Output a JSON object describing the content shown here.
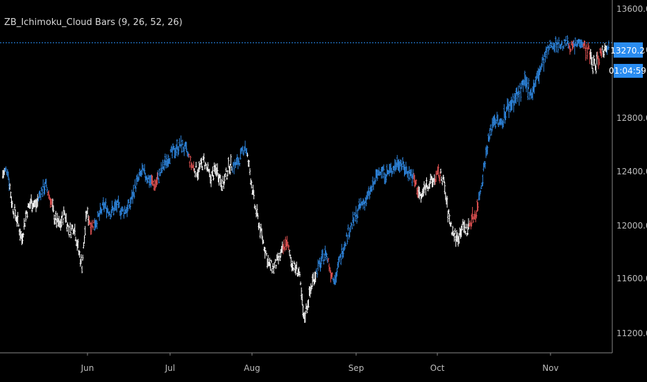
{
  "indicator": {
    "name": "ZB_Ichimoku_Cloud Bars",
    "params": "(9, 26, 52, 26)"
  },
  "price_axis": {
    "ticks": [
      "13600.0",
      "13200.0",
      "12800.0",
      "12400.0",
      "12000.0",
      "11600.0",
      "11200.0"
    ],
    "last_price": "13270.2",
    "countdown": "01:04:59"
  },
  "time_axis": {
    "labels": [
      "Jun",
      "Jul",
      "Aug",
      "Sep",
      "Oct",
      "Nov"
    ]
  },
  "colors": {
    "background": "#000000",
    "bull_above_cloud": "#2f87e0",
    "bear_red": "#e05252",
    "neutral_white": "#ffffff",
    "price_line": "#2a8cf0",
    "axis_line": "#888888"
  },
  "chart_data": {
    "type": "bar",
    "title": "ZB_Ichimoku_Cloud Bars (9, 26, 52, 26)",
    "xlabel": "",
    "ylabel": "",
    "ylim": [
      11080,
      13660
    ],
    "x_labels": [
      "Jun",
      "Jul",
      "Aug",
      "Sep",
      "Oct",
      "Nov"
    ],
    "last_price": 13270.2,
    "anchors": [
      [
        0,
        12380,
        "w"
      ],
      [
        6,
        12420,
        "b"
      ],
      [
        12,
        12150,
        "w"
      ],
      [
        18,
        12050,
        "w"
      ],
      [
        24,
        11900,
        "w"
      ],
      [
        30,
        12100,
        "w"
      ],
      [
        36,
        12180,
        "w"
      ],
      [
        42,
        12150,
        "w"
      ],
      [
        48,
        12250,
        "b"
      ],
      [
        54,
        12300,
        "b"
      ],
      [
        60,
        12200,
        "r"
      ],
      [
        66,
        12050,
        "w"
      ],
      [
        72,
        12000,
        "w"
      ],
      [
        78,
        12100,
        "w"
      ],
      [
        84,
        11950,
        "w"
      ],
      [
        90,
        12000,
        "w"
      ],
      [
        96,
        11800,
        "w"
      ],
      [
        100,
        11700,
        "w"
      ],
      [
        106,
        12100,
        "w"
      ],
      [
        112,
        12000,
        "r"
      ],
      [
        120,
        12050,
        "b"
      ],
      [
        128,
        12150,
        "b"
      ],
      [
        136,
        12100,
        "b"
      ],
      [
        144,
        12150,
        "b"
      ],
      [
        152,
        12100,
        "b"
      ],
      [
        160,
        12150,
        "b"
      ],
      [
        168,
        12300,
        "b"
      ],
      [
        176,
        12400,
        "b"
      ],
      [
        184,
        12350,
        "b"
      ],
      [
        192,
        12300,
        "r"
      ],
      [
        200,
        12400,
        "b"
      ],
      [
        208,
        12500,
        "b"
      ],
      [
        216,
        12550,
        "b"
      ],
      [
        220,
        12580,
        "b"
      ],
      [
        226,
        12600,
        "b"
      ],
      [
        232,
        12550,
        "b"
      ],
      [
        238,
        12450,
        "r"
      ],
      [
        246,
        12400,
        "w"
      ],
      [
        254,
        12480,
        "w"
      ],
      [
        262,
        12350,
        "w"
      ],
      [
        270,
        12420,
        "w"
      ],
      [
        278,
        12300,
        "w"
      ],
      [
        286,
        12450,
        "w"
      ],
      [
        294,
        12450,
        "b"
      ],
      [
        300,
        12500,
        "b"
      ],
      [
        306,
        12600,
        "b"
      ],
      [
        312,
        12400,
        "w"
      ],
      [
        318,
        12150,
        "w"
      ],
      [
        324,
        12000,
        "w"
      ],
      [
        330,
        11850,
        "w"
      ],
      [
        336,
        11700,
        "w"
      ],
      [
        342,
        11680,
        "w"
      ],
      [
        350,
        11760,
        "w"
      ],
      [
        358,
        11880,
        "r"
      ],
      [
        366,
        11700,
        "w"
      ],
      [
        374,
        11650,
        "w"
      ],
      [
        380,
        11300,
        "w"
      ],
      [
        386,
        11450,
        "w"
      ],
      [
        392,
        11600,
        "w"
      ],
      [
        400,
        11700,
        "b"
      ],
      [
        408,
        11800,
        "b"
      ],
      [
        414,
        11650,
        "r"
      ],
      [
        420,
        11600,
        "b"
      ],
      [
        428,
        11800,
        "b"
      ],
      [
        436,
        11950,
        "b"
      ],
      [
        444,
        12050,
        "b"
      ],
      [
        452,
        12150,
        "b"
      ],
      [
        460,
        12200,
        "b"
      ],
      [
        468,
        12300,
        "b"
      ],
      [
        476,
        12420,
        "b"
      ],
      [
        484,
        12380,
        "b"
      ],
      [
        492,
        12420,
        "b"
      ],
      [
        500,
        12480,
        "b"
      ],
      [
        508,
        12420,
        "b"
      ],
      [
        516,
        12380,
        "b"
      ],
      [
        522,
        12300,
        "r"
      ],
      [
        528,
        12200,
        "w"
      ],
      [
        534,
        12300,
        "w"
      ],
      [
        542,
        12320,
        "w"
      ],
      [
        550,
        12380,
        "r"
      ],
      [
        556,
        12350,
        "w"
      ],
      [
        562,
        12100,
        "w"
      ],
      [
        568,
        11950,
        "w"
      ],
      [
        574,
        11900,
        "w"
      ],
      [
        580,
        12000,
        "w"
      ],
      [
        586,
        11960,
        "w"
      ],
      [
        592,
        12050,
        "r"
      ],
      [
        598,
        12100,
        "r"
      ],
      [
        604,
        12300,
        "b"
      ],
      [
        612,
        12600,
        "b"
      ],
      [
        620,
        12800,
        "b"
      ],
      [
        628,
        12750,
        "b"
      ],
      [
        636,
        12850,
        "b"
      ],
      [
        644,
        12900,
        "b"
      ],
      [
        652,
        12950,
        "b"
      ],
      [
        660,
        13000,
        "b"
      ],
      [
        668,
        12950,
        "b"
      ],
      [
        676,
        13050,
        "b"
      ],
      [
        684,
        13150,
        "b"
      ],
      [
        692,
        13250,
        "b"
      ],
      [
        700,
        13270,
        "b"
      ],
      [
        706,
        13240,
        "b"
      ],
      [
        712,
        13280,
        "b"
      ],
      [
        718,
        13230,
        "r"
      ],
      [
        724,
        13250,
        "b"
      ],
      [
        730,
        13300,
        "b"
      ],
      [
        736,
        13220,
        "r"
      ],
      [
        740,
        13200,
        "r"
      ],
      [
        744,
        13120,
        "w"
      ],
      [
        748,
        13100,
        "w"
      ],
      [
        754,
        13180,
        "r"
      ],
      [
        760,
        13220,
        "w"
      ],
      [
        766,
        13270,
        "b"
      ]
    ]
  }
}
